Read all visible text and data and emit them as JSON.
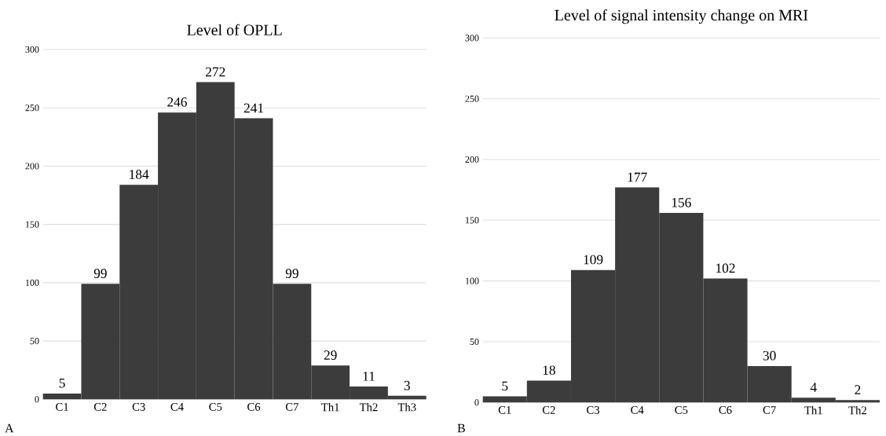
{
  "chart_data": [
    {
      "type": "bar",
      "title": "Level of OPLL",
      "categories": [
        "C1",
        "C2",
        "C3",
        "C4",
        "C5",
        "C6",
        "C7",
        "Th1",
        "Th2",
        "Th3"
      ],
      "values": [
        5,
        99,
        184,
        246,
        272,
        241,
        99,
        29,
        11,
        3
      ],
      "color": "#3c3c3c",
      "ylim": [
        0,
        300
      ],
      "yticks": [
        0,
        50,
        100,
        150,
        200,
        250,
        300
      ],
      "grid": "y",
      "data_labels": true,
      "annotations": [
        "A"
      ]
    },
    {
      "type": "bar",
      "title": "Level of signal intensity change on MRI",
      "categories": [
        "C1",
        "C2",
        "C3",
        "C4",
        "C5",
        "C6",
        "C7",
        "Th1",
        "Th2"
      ],
      "values": [
        5,
        18,
        109,
        177,
        156,
        102,
        30,
        4,
        2
      ],
      "color": "#3c3c3c",
      "ylim": [
        0,
        300
      ],
      "yticks": [
        0,
        50,
        100,
        150,
        200,
        250,
        300
      ],
      "grid": "y",
      "data_labels": true,
      "annotations": [
        "B"
      ]
    }
  ]
}
